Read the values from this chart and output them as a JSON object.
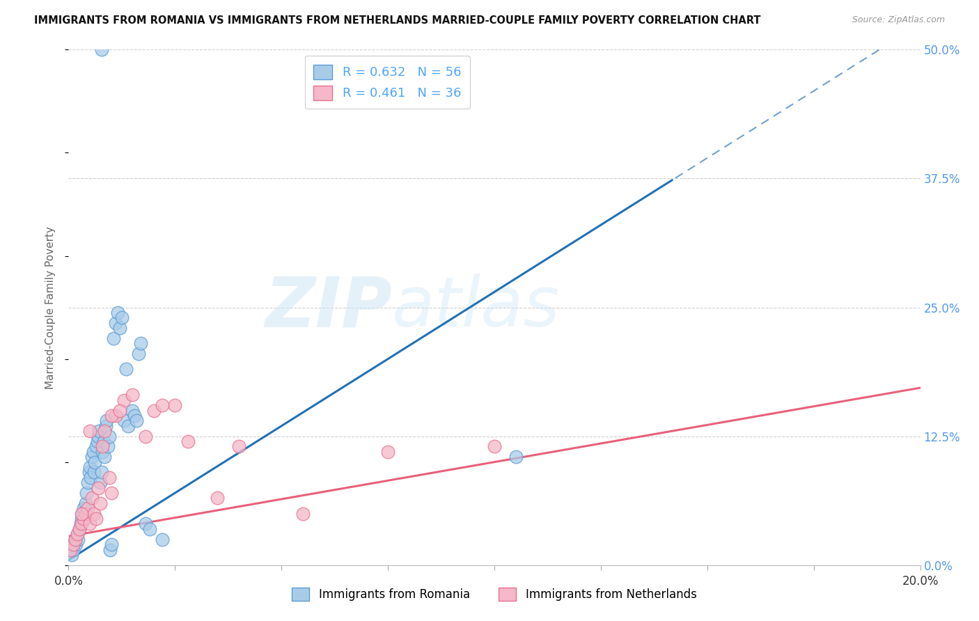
{
  "title": "IMMIGRANTS FROM ROMANIA VS IMMIGRANTS FROM NETHERLANDS MARRIED-COUPLE FAMILY POVERTY CORRELATION CHART",
  "source": "Source: ZipAtlas.com",
  "ylabel": "Married-Couple Family Poverty",
  "ytick_values": [
    0.0,
    12.5,
    25.0,
    37.5,
    50.0
  ],
  "xlim": [
    0.0,
    20.0
  ],
  "ylim": [
    -1.0,
    53.0
  ],
  "plot_ylim": [
    0.0,
    50.0
  ],
  "romania_color": "#a8cce8",
  "romania_edge_color": "#5b9bd5",
  "netherlands_color": "#f4b8c8",
  "netherlands_edge_color": "#e87090",
  "romania_line_color": "#2171b5",
  "netherlands_line_color": "#e8607a",
  "legend_text_color": "#4da6ff",
  "romania_R": "0.632",
  "romania_N": "56",
  "netherlands_R": "0.461",
  "netherlands_N": "36",
  "legend_label_romania": "Immigrants from Romania",
  "legend_label_netherlands": "Immigrants from Netherlands",
  "watermark_zip": "ZIP",
  "watermark_atlas": "atlas",
  "romania_line_x0": 0.0,
  "romania_line_y0": 0.5,
  "romania_line_slope": 2.6,
  "romania_solid_end_x": 14.2,
  "netherlands_line_x0": 0.0,
  "netherlands_line_y0": 2.8,
  "netherlands_line_slope": 0.72,
  "romania_scatter_x": [
    0.08,
    0.1,
    0.12,
    0.15,
    0.18,
    0.2,
    0.22,
    0.25,
    0.28,
    0.3,
    0.32,
    0.35,
    0.38,
    0.4,
    0.42,
    0.45,
    0.48,
    0.5,
    0.52,
    0.55,
    0.58,
    0.6,
    0.62,
    0.65,
    0.68,
    0.7,
    0.72,
    0.75,
    0.78,
    0.8,
    0.82,
    0.85,
    0.88,
    0.9,
    0.92,
    0.95,
    0.98,
    1.0,
    1.05,
    1.1,
    1.15,
    1.2,
    1.25,
    1.3,
    1.35,
    1.4,
    1.5,
    1.55,
    1.6,
    1.65,
    1.7,
    1.8,
    1.9,
    0.78,
    10.5,
    2.2
  ],
  "romania_scatter_y": [
    1.0,
    1.5,
    2.0,
    2.5,
    2.0,
    3.0,
    2.5,
    3.5,
    4.0,
    4.5,
    5.0,
    5.5,
    4.5,
    6.0,
    7.0,
    8.0,
    9.0,
    9.5,
    8.5,
    10.5,
    11.0,
    9.0,
    10.0,
    11.5,
    12.0,
    12.5,
    13.0,
    8.0,
    9.0,
    11.0,
    12.0,
    10.5,
    13.5,
    14.0,
    11.5,
    12.5,
    1.5,
    2.0,
    22.0,
    23.5,
    24.5,
    23.0,
    24.0,
    14.0,
    19.0,
    13.5,
    15.0,
    14.5,
    14.0,
    20.5,
    21.5,
    4.0,
    3.5,
    50.0,
    10.5,
    2.5
  ],
  "netherlands_scatter_x": [
    0.05,
    0.1,
    0.15,
    0.2,
    0.25,
    0.3,
    0.35,
    0.4,
    0.45,
    0.5,
    0.55,
    0.6,
    0.65,
    0.7,
    0.75,
    0.85,
    0.95,
    1.0,
    1.1,
    1.3,
    1.5,
    2.0,
    2.5,
    3.5,
    4.0,
    5.5,
    7.5,
    10.0,
    0.3,
    0.5,
    0.8,
    1.0,
    1.2,
    1.8,
    2.2,
    2.8
  ],
  "netherlands_scatter_y": [
    1.5,
    2.0,
    2.5,
    3.0,
    3.5,
    4.0,
    4.5,
    5.0,
    5.5,
    4.0,
    6.5,
    5.0,
    4.5,
    7.5,
    6.0,
    13.0,
    8.5,
    7.0,
    14.5,
    16.0,
    16.5,
    15.0,
    15.5,
    6.5,
    11.5,
    5.0,
    11.0,
    11.5,
    5.0,
    13.0,
    11.5,
    14.5,
    15.0,
    12.5,
    15.5,
    12.0
  ]
}
